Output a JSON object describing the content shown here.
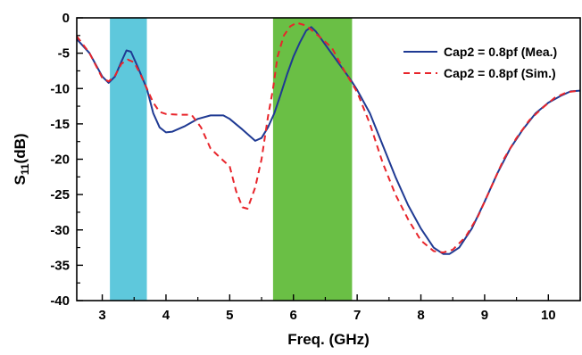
{
  "chart_data": {
    "type": "line",
    "xlabel": "Freq. (GHz)",
    "ylabel_main": "S",
    "ylabel_sub": "11",
    "ylabel_tail": "(dB)",
    "xlim": [
      2.6,
      10.5
    ],
    "ylim": [
      -40,
      0
    ],
    "x_ticks": [
      3,
      4,
      5,
      6,
      7,
      8,
      9,
      10
    ],
    "y_ticks": [
      0,
      -5,
      -10,
      -15,
      -20,
      -25,
      -30,
      -35,
      -40
    ],
    "grid": false,
    "legend_position": "top-right",
    "bands": [
      {
        "x0": 3.12,
        "x1": 3.7,
        "color": "#5ec8dc"
      },
      {
        "x0": 5.68,
        "x1": 6.92,
        "color": "#6abf45"
      }
    ],
    "series": [
      {
        "name": "Cap2 = 0.8pf (Mea.)",
        "color": "#1f3a93",
        "dash": "solid",
        "points": [
          [
            2.6,
            -3
          ],
          [
            2.8,
            -5
          ],
          [
            3.0,
            -8.3
          ],
          [
            3.1,
            -9.2
          ],
          [
            3.2,
            -8.3
          ],
          [
            3.3,
            -6.2
          ],
          [
            3.38,
            -4.6
          ],
          [
            3.45,
            -4.8
          ],
          [
            3.55,
            -6.8
          ],
          [
            3.7,
            -10
          ],
          [
            3.8,
            -13.5
          ],
          [
            3.9,
            -15.5
          ],
          [
            4.0,
            -16.2
          ],
          [
            4.1,
            -16.1
          ],
          [
            4.3,
            -15.3
          ],
          [
            4.5,
            -14.3
          ],
          [
            4.7,
            -13.8
          ],
          [
            4.9,
            -13.8
          ],
          [
            5.0,
            -14.3
          ],
          [
            5.2,
            -15.8
          ],
          [
            5.4,
            -17.4
          ],
          [
            5.5,
            -17.0
          ],
          [
            5.6,
            -15.5
          ],
          [
            5.7,
            -13.5
          ],
          [
            5.8,
            -10.8
          ],
          [
            5.9,
            -8.0
          ],
          [
            6.0,
            -5.5
          ],
          [
            6.1,
            -3.5
          ],
          [
            6.2,
            -1.8
          ],
          [
            6.28,
            -1.3
          ],
          [
            6.35,
            -1.9
          ],
          [
            6.5,
            -3.8
          ],
          [
            6.7,
            -6.3
          ],
          [
            6.9,
            -8.8
          ],
          [
            7.0,
            -10.2
          ],
          [
            7.2,
            -13.5
          ],
          [
            7.4,
            -18.0
          ],
          [
            7.6,
            -22.5
          ],
          [
            7.8,
            -26.5
          ],
          [
            8.0,
            -29.8
          ],
          [
            8.2,
            -32.5
          ],
          [
            8.35,
            -33.4
          ],
          [
            8.45,
            -33.4
          ],
          [
            8.6,
            -32.5
          ],
          [
            8.8,
            -29.8
          ],
          [
            9.0,
            -26.0
          ],
          [
            9.2,
            -22.0
          ],
          [
            9.4,
            -18.5
          ],
          [
            9.6,
            -15.8
          ],
          [
            9.8,
            -13.5
          ],
          [
            10.0,
            -12.0
          ],
          [
            10.2,
            -11.0
          ],
          [
            10.35,
            -10.4
          ],
          [
            10.5,
            -10.3
          ]
        ]
      },
      {
        "name": "Cap2 = 0.8pf (Sim.)",
        "color": "#e8252b",
        "dash": "dashed",
        "points": [
          [
            2.6,
            -2.6
          ],
          [
            2.8,
            -5.0
          ],
          [
            3.0,
            -8.5
          ],
          [
            3.1,
            -9.0
          ],
          [
            3.2,
            -8.2
          ],
          [
            3.3,
            -6.5
          ],
          [
            3.4,
            -5.9
          ],
          [
            3.5,
            -6.3
          ],
          [
            3.6,
            -8.0
          ],
          [
            3.7,
            -10.0
          ],
          [
            3.8,
            -12.0
          ],
          [
            3.9,
            -13.3
          ],
          [
            4.0,
            -13.6
          ],
          [
            4.2,
            -13.7
          ],
          [
            4.4,
            -13.7
          ],
          [
            4.55,
            -15.5
          ],
          [
            4.7,
            -18.5
          ],
          [
            4.9,
            -20.2
          ],
          [
            5.0,
            -21.0
          ],
          [
            5.1,
            -24.5
          ],
          [
            5.2,
            -26.8
          ],
          [
            5.28,
            -27.0
          ],
          [
            5.4,
            -24.0
          ],
          [
            5.5,
            -20.0
          ],
          [
            5.6,
            -14.0
          ],
          [
            5.68,
            -10.0
          ],
          [
            5.75,
            -5.5
          ],
          [
            5.85,
            -2.5
          ],
          [
            5.95,
            -1.2
          ],
          [
            6.05,
            -0.7
          ],
          [
            6.2,
            -1.1
          ],
          [
            6.4,
            -2.6
          ],
          [
            6.6,
            -4.2
          ],
          [
            6.8,
            -7.5
          ],
          [
            7.0,
            -10.5
          ],
          [
            7.2,
            -15.0
          ],
          [
            7.4,
            -20.5
          ],
          [
            7.6,
            -25.0
          ],
          [
            7.8,
            -28.5
          ],
          [
            8.0,
            -31.5
          ],
          [
            8.2,
            -33.0
          ],
          [
            8.35,
            -33.2
          ],
          [
            8.5,
            -32.8
          ],
          [
            8.7,
            -31.0
          ],
          [
            8.9,
            -28.0
          ],
          [
            9.1,
            -24.0
          ],
          [
            9.3,
            -20.0
          ],
          [
            9.5,
            -17.0
          ],
          [
            9.7,
            -14.5
          ],
          [
            9.9,
            -12.8
          ],
          [
            10.1,
            -11.3
          ],
          [
            10.3,
            -10.5
          ],
          [
            10.5,
            -10.3
          ]
        ]
      }
    ]
  }
}
